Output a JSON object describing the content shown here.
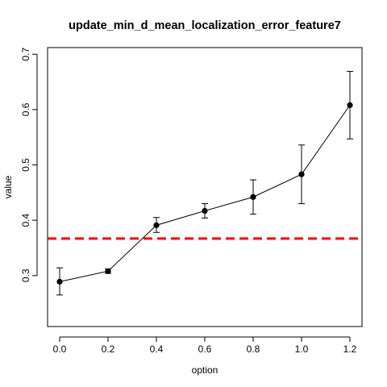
{
  "chart_data": {
    "type": "line",
    "title": "update_min_d_mean_localization_error_feature7",
    "xlabel": "option",
    "ylabel": "value",
    "x": [
      0.0,
      0.2,
      0.4,
      0.6,
      0.8,
      1.0,
      1.2
    ],
    "x_ticks": [
      "0.0",
      "0.2",
      "0.4",
      "0.6",
      "0.8",
      "1.0",
      "1.2"
    ],
    "y_ticks": [
      "0.3",
      "0.4",
      "0.5",
      "0.6",
      "0.7"
    ],
    "xlim": [
      -0.05,
      1.25
    ],
    "ylim": [
      0.208,
      0.712
    ],
    "grid": false,
    "series": [
      {
        "values": [
          0.289,
          0.308,
          0.391,
          0.417,
          0.442,
          0.483,
          0.608
        ],
        "error_low": [
          0.265,
          0.304,
          0.378,
          0.404,
          0.411,
          0.43,
          0.547
        ],
        "error_high": [
          0.314,
          0.312,
          0.405,
          0.43,
          0.473,
          0.536,
          0.669
        ],
        "color": "#000000",
        "marker": "filled-circle"
      }
    ],
    "reference_line": {
      "y": 0.367,
      "color": "#ff0000",
      "style": "dashed"
    }
  }
}
